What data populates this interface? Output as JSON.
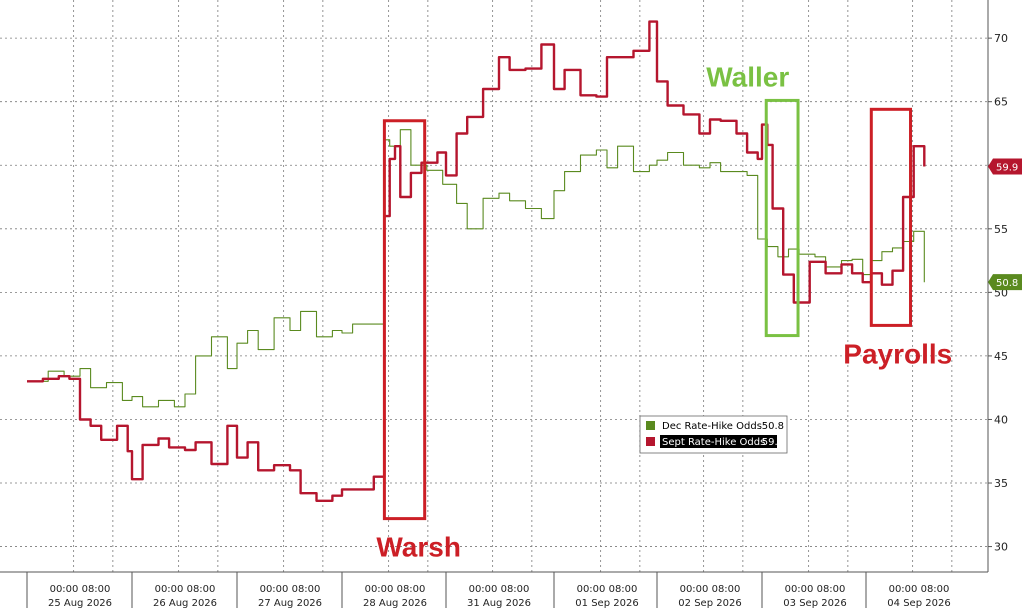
{
  "chart_data": {
    "type": "line",
    "title": "",
    "xlabel": "",
    "ylabel": "",
    "ylim": [
      28,
      73
    ],
    "y_ticks": [
      30,
      35,
      40,
      45,
      50,
      55,
      60,
      65,
      70
    ],
    "grid": true,
    "x_ticks_time": [
      "00:00 08:00",
      "00:00 08:00",
      "00:00 08:00",
      "00:00 08:00",
      "00:00 08:00",
      "00:00 08:00",
      "00:00 08:00",
      "00:00 08:00",
      "00:00 08:00",
      "00:00 08:00"
    ],
    "x_ticks_date": [
      "25 Aug 2026",
      "26 Aug 2026",
      "27 Aug 2026",
      "28 Aug 2026",
      "31 Aug 2026",
      "01 Sep 2026",
      "02 Sep 2026",
      "03 Sep 2026",
      "04 Sep 2026"
    ],
    "legend_position": "center-right",
    "series": [
      {
        "name": "Dec Rate-Hike Odds",
        "last_value": "50.8",
        "color": "#5a8a1f",
        "x": [
          0,
          0.2,
          0.35,
          0.5,
          0.6,
          0.75,
          0.9,
          1.0,
          1.1,
          1.25,
          1.4,
          1.5,
          1.6,
          1.75,
          1.9,
          2.0,
          2.1,
          2.2,
          2.35,
          2.5,
          2.6,
          2.75,
          2.9,
          3.0,
          3.1,
          3.2,
          3.4,
          3.45,
          3.55,
          3.65,
          3.8,
          3.95,
          4.1,
          4.2,
          4.35,
          4.5,
          4.6,
          4.75,
          4.9,
          5.0,
          5.1,
          5.25,
          5.4,
          5.5,
          5.6,
          5.75,
          5.9,
          6.0,
          6.1,
          6.25,
          6.4,
          6.5,
          6.6,
          6.75,
          6.85,
          6.95,
          7.05,
          7.15,
          7.25,
          7.35,
          7.5,
          7.6,
          7.75,
          7.85,
          7.95,
          8.05,
          8.15,
          8.25,
          8.35,
          8.45,
          8.55
        ],
        "y": [
          43,
          43.8,
          43.4,
          44,
          42.5,
          42.9,
          41.5,
          41.8,
          41,
          41.5,
          41,
          42,
          45,
          46.5,
          44,
          46,
          47,
          45.5,
          48,
          47,
          48.5,
          46.5,
          47,
          46.8,
          47.5,
          47.5,
          62,
          61.5,
          62.8,
          60,
          59.6,
          58.5,
          57,
          55,
          57.4,
          57.8,
          57.2,
          56.6,
          55.8,
          58,
          59.5,
          60.8,
          61.2,
          59.8,
          61.5,
          59.5,
          60,
          60.4,
          61,
          60,
          59.8,
          60.2,
          59.5,
          59.5,
          59.2,
          54.2,
          53.6,
          52.8,
          53.4,
          53,
          52.8,
          52,
          52.5,
          52.6,
          51.4,
          52.5,
          53.2,
          53.5,
          54,
          54.8,
          50.8
        ]
      },
      {
        "name": "Sept Rate-Hike Odds",
        "last_value": "59.9",
        "color": "#b5162e",
        "x": [
          0,
          0.15,
          0.3,
          0.4,
          0.5,
          0.6,
          0.7,
          0.85,
          0.95,
          1.0,
          1.1,
          1.25,
          1.35,
          1.5,
          1.6,
          1.75,
          1.9,
          2.0,
          2.1,
          2.2,
          2.35,
          2.5,
          2.6,
          2.75,
          2.9,
          3.0,
          3.1,
          3.2,
          3.3,
          3.4,
          3.45,
          3.5,
          3.55,
          3.65,
          3.75,
          3.9,
          4.0,
          4.1,
          4.2,
          4.35,
          4.5,
          4.6,
          4.75,
          4.9,
          5.0,
          5.1,
          5.25,
          5.4,
          5.5,
          5.6,
          5.75,
          5.9,
          6.0,
          6.1,
          6.25,
          6.4,
          6.5,
          6.6,
          6.75,
          6.85,
          6.95,
          7.0,
          7.05,
          7.1,
          7.2,
          7.3,
          7.45,
          7.6,
          7.75,
          7.85,
          7.95,
          8.05,
          8.15,
          8.25,
          8.35,
          8.45,
          8.55
        ],
        "y": [
          43,
          43.2,
          43.4,
          43.2,
          40,
          39.5,
          38.4,
          39.5,
          37.5,
          35.3,
          38,
          38.5,
          37.8,
          37.6,
          38.2,
          36.5,
          39.5,
          37,
          38.2,
          36,
          36.4,
          36,
          34.2,
          33.6,
          34,
          34.5,
          34.5,
          34.5,
          35.5,
          56,
          60.5,
          61.5,
          57.5,
          59.4,
          60.2,
          61,
          59.2,
          62.5,
          63.8,
          66,
          68.5,
          67.5,
          67.6,
          69.5,
          66,
          67.5,
          65.5,
          65.4,
          68.5,
          68.5,
          69,
          71.3,
          66.6,
          64.7,
          64,
          62.5,
          63.6,
          63.5,
          62.5,
          61,
          60.5,
          63.2,
          61.6,
          56.6,
          51.4,
          49.2,
          52.4,
          51.5,
          52.2,
          51.5,
          50.8,
          51.5,
          50.6,
          51.7,
          57.5,
          61.5,
          59.9
        ]
      }
    ],
    "annotations": [
      {
        "label": "Warsh",
        "color": "#cc1f26",
        "x_range": [
          3.4,
          3.78
        ],
        "y_range": [
          32.2,
          63.5
        ]
      },
      {
        "label": "Waller",
        "color": "#7ac143",
        "x_range": [
          7.04,
          7.34
        ],
        "y_range": [
          46.6,
          65.1
        ]
      },
      {
        "label": "Payrolls",
        "color": "#cc1f26",
        "x_range": [
          8.05,
          8.42
        ],
        "y_range": [
          47.4,
          64.4
        ]
      }
    ]
  }
}
